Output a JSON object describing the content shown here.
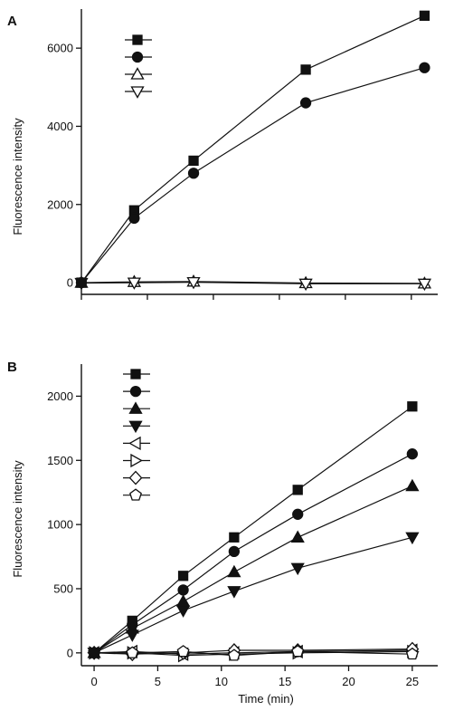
{
  "colors": {
    "ink": "#111111",
    "background": "#ffffff",
    "open_fill": "#ffffff"
  },
  "chart_data": [
    {
      "panel": "A",
      "type": "line",
      "xlabel": "",
      "ylabel": "Fluorescence intensity",
      "xlim": [
        0,
        27
      ],
      "ylim": [
        -300,
        7000
      ],
      "yticks": [
        0,
        2000,
        4000,
        6000
      ],
      "yticklabels": [
        "0",
        "2000",
        "4000",
        "6000"
      ],
      "xticks": [
        0,
        5,
        10,
        15,
        20,
        25
      ],
      "show_xtick_labels": false,
      "grid": false,
      "legend_position": "top-left",
      "series": [
        {
          "marker": "square",
          "filled": true,
          "x": [
            0,
            4,
            8.5,
            17,
            26
          ],
          "y": [
            0,
            1850,
            3120,
            5450,
            6830
          ]
        },
        {
          "marker": "circle",
          "filled": true,
          "x": [
            0,
            4,
            8.5,
            17,
            26
          ],
          "y": [
            0,
            1650,
            2800,
            4600,
            5500
          ]
        },
        {
          "marker": "triangle-up",
          "filled": false,
          "x": [
            0,
            4,
            8.5,
            17,
            26
          ],
          "y": [
            0,
            20,
            30,
            -10,
            -20
          ]
        },
        {
          "marker": "triangle-down",
          "filled": false,
          "x": [
            0,
            4,
            8.5,
            17,
            26
          ],
          "y": [
            -10,
            0,
            10,
            -30,
            -30
          ]
        }
      ]
    },
    {
      "panel": "B",
      "type": "line",
      "xlabel": "Time (min)",
      "ylabel": "Fluorescence intensity",
      "xlim": [
        -1,
        27
      ],
      "ylim": [
        -100,
        2250
      ],
      "yticks": [
        0,
        500,
        1000,
        1500,
        2000
      ],
      "yticklabels": [
        "0",
        "500",
        "1000",
        "1500",
        "2000"
      ],
      "xticks": [
        0,
        5,
        10,
        15,
        20,
        25
      ],
      "xticklabels": [
        "0",
        "5",
        "10",
        "15",
        "20",
        "25"
      ],
      "show_xtick_labels": true,
      "grid": false,
      "legend_position": "top-left",
      "series": [
        {
          "marker": "square",
          "filled": true,
          "x": [
            0,
            3,
            7,
            11,
            16,
            25
          ],
          "y": [
            0,
            250,
            600,
            900,
            1270,
            1920
          ]
        },
        {
          "marker": "circle",
          "filled": true,
          "x": [
            0,
            3,
            7,
            11,
            16,
            25
          ],
          "y": [
            0,
            220,
            490,
            790,
            1080,
            1550
          ]
        },
        {
          "marker": "triangle-up",
          "filled": true,
          "x": [
            0,
            3,
            7,
            11,
            16,
            25
          ],
          "y": [
            0,
            190,
            400,
            630,
            900,
            1300
          ]
        },
        {
          "marker": "triangle-down",
          "filled": true,
          "x": [
            0,
            3,
            7,
            11,
            16,
            25
          ],
          "y": [
            0,
            140,
            330,
            480,
            660,
            900
          ]
        },
        {
          "marker": "triangle-left",
          "filled": false,
          "x": [
            0,
            3,
            7,
            11,
            16,
            25
          ],
          "y": [
            0,
            10,
            -10,
            0,
            10,
            20
          ]
        },
        {
          "marker": "triangle-right",
          "filled": false,
          "x": [
            0,
            3,
            7,
            11,
            16,
            25
          ],
          "y": [
            0,
            0,
            -20,
            -10,
            0,
            10
          ]
        },
        {
          "marker": "diamond",
          "filled": false,
          "x": [
            0,
            3,
            7,
            11,
            16,
            25
          ],
          "y": [
            0,
            -10,
            0,
            20,
            20,
            30
          ]
        },
        {
          "marker": "pentagon",
          "filled": false,
          "x": [
            0,
            3,
            7,
            11,
            16,
            25
          ],
          "y": [
            0,
            0,
            10,
            -20,
            10,
            -10
          ]
        }
      ]
    }
  ]
}
